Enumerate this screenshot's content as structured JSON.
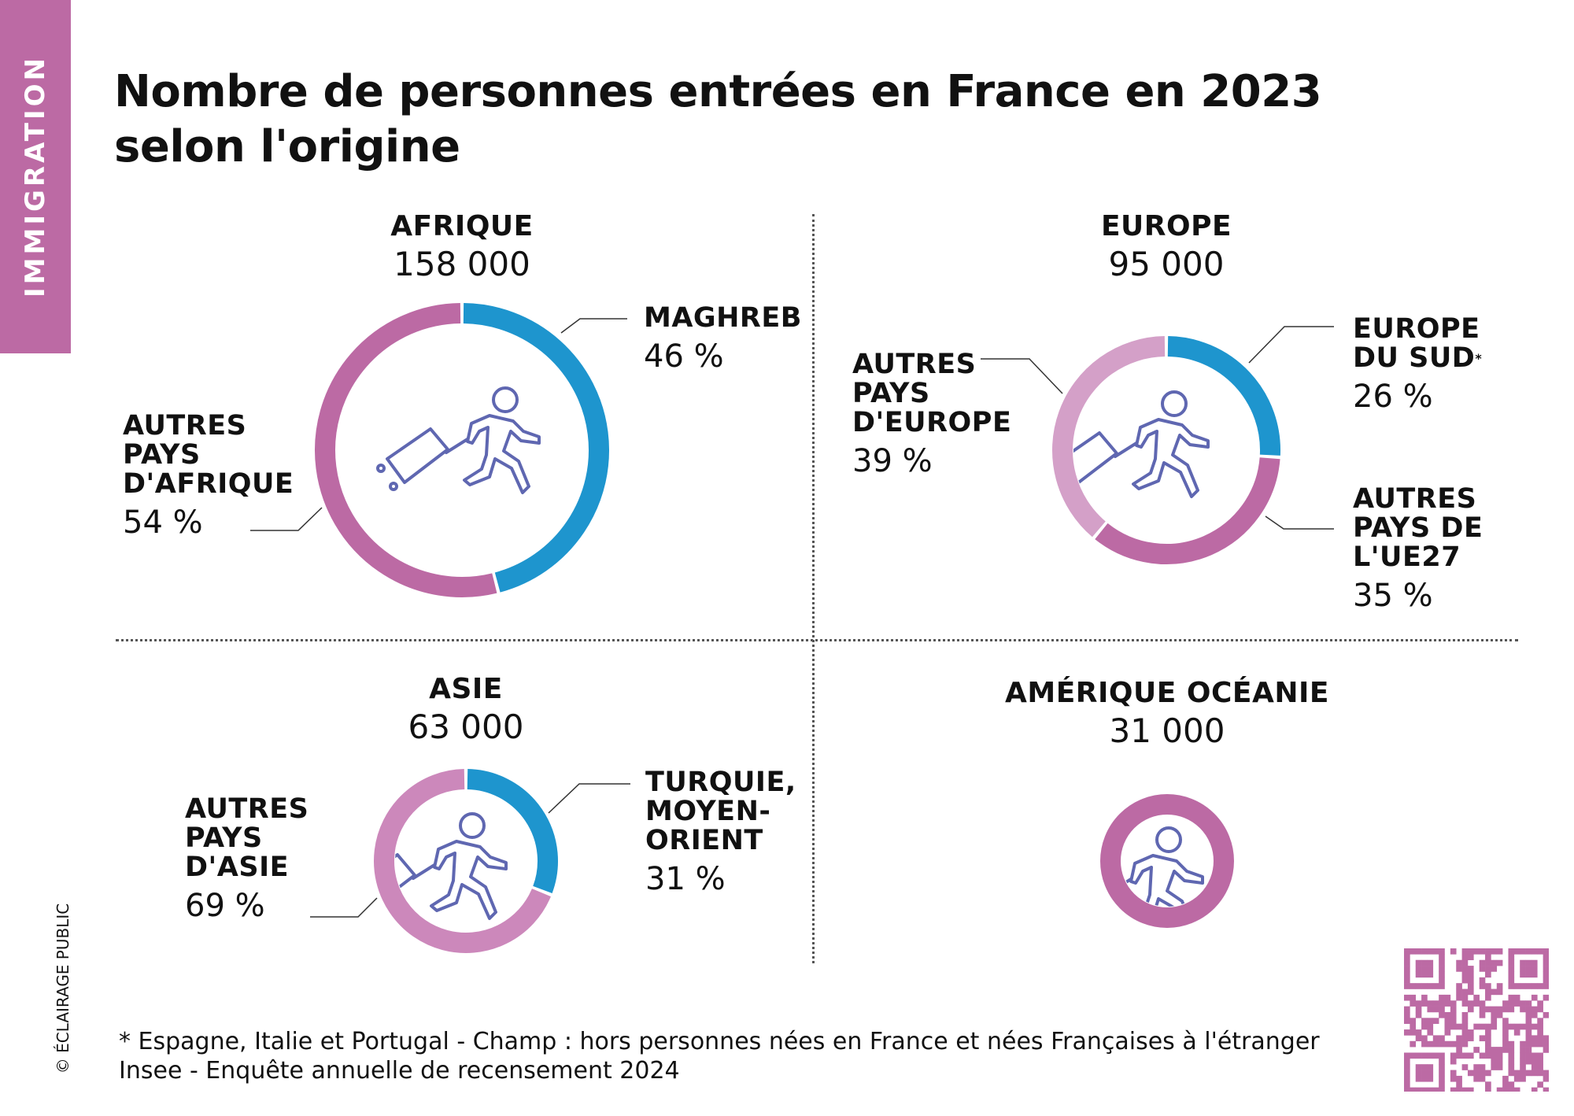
{
  "section_tag": "IMMIGRATION",
  "title_line1": "Nombre de personnes entrées en France en 2023",
  "title_line2": "selon l'origine",
  "footnote_line1": "* Espagne, Italie et Portugal - Champ : hors personnes nées en France et nées Françaises à l'étranger",
  "footnote_line2": "Insee - Enquête annuelle de recensement 2024",
  "copyright": "© ÉCLAIRAGE PUBLIC",
  "colors": {
    "blue": "#1e95ce",
    "purple": "#bc6aa4",
    "light_purple": "#d4a0c8",
    "pink": "#cc88bb",
    "icon": "#5f67b1"
  },
  "chart_data": [
    {
      "type": "pie",
      "title": "AFRIQUE",
      "total": "158 000",
      "segments": [
        {
          "label": "MAGHREB",
          "percent_text": "46 %",
          "value": 46,
          "color": "#1e95ce"
        },
        {
          "label": "AUTRES PAYS D'AFRIQUE",
          "label_lines": [
            "AUTRES",
            "PAYS",
            "D'AFRIQUE"
          ],
          "percent_text": "54 %",
          "value": 54,
          "color": "#bc6aa4"
        }
      ]
    },
    {
      "type": "pie",
      "title": "EUROPE",
      "total": "95 000",
      "segments": [
        {
          "label": "EUROPE DU SUD*",
          "label_lines": [
            "EUROPE",
            "DU SUD",
            "*"
          ],
          "percent_text": "26 %",
          "value": 26,
          "color": "#1e95ce"
        },
        {
          "label": "AUTRES PAYS DE L'UE27",
          "label_lines": [
            "AUTRES",
            "PAYS DE",
            "L'UE27"
          ],
          "percent_text": "35 %",
          "value": 35,
          "color": "#bc6aa4"
        },
        {
          "label": "AUTRES PAYS D'EUROPE",
          "label_lines": [
            "AUTRES",
            "PAYS",
            "D'EUROPE"
          ],
          "percent_text": "39 %",
          "value": 39,
          "color": "#d4a0c8"
        }
      ]
    },
    {
      "type": "pie",
      "title": "ASIE",
      "total": "63 000",
      "segments": [
        {
          "label": "TURQUIE, MOYEN-ORIENT",
          "label_lines": [
            "TURQUIE,",
            "MOYEN-",
            "ORIENT"
          ],
          "percent_text": "31 %",
          "value": 31,
          "color": "#1e95ce"
        },
        {
          "label": "AUTRES PAYS D'ASIE",
          "label_lines": [
            "AUTRES",
            "PAYS",
            "D'ASIE"
          ],
          "percent_text": "69 %",
          "value": 69,
          "color": "#cc88bb"
        }
      ]
    },
    {
      "type": "pie",
      "title": "AMÉRIQUE OCÉANIE",
      "total": "31 000",
      "segments": [
        {
          "label": "AMÉRIQUE OCÉANIE",
          "value": 100,
          "color": "#bc6aa4"
        }
      ]
    }
  ]
}
